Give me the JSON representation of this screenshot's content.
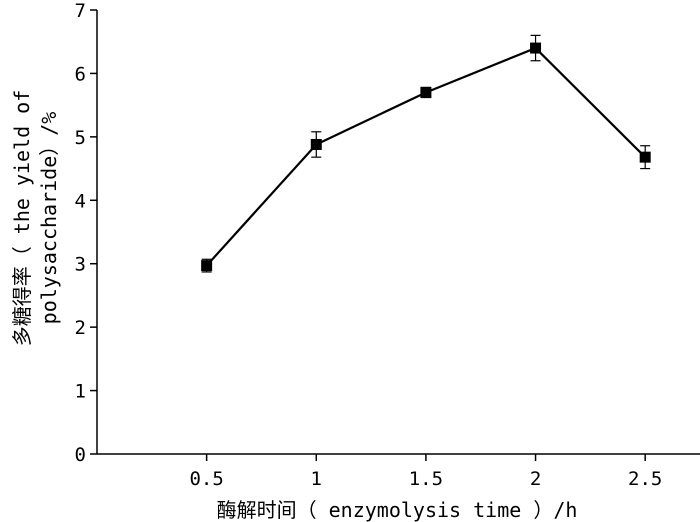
{
  "chart_data": {
    "type": "line",
    "title": "",
    "xlabel": "酶解时间（ enzymolysis time ）/h",
    "ylabel_lines": [
      "多糖得率（ the yield of",
      "polysaccharide）/%"
    ],
    "x_ticks": [
      "0.5",
      "1",
      "1.5",
      "2",
      "2.5"
    ],
    "y_ticks": [
      "0",
      "1",
      "2",
      "3",
      "4",
      "5",
      "6",
      "7"
    ],
    "xlim": [
      0,
      2.75
    ],
    "ylim": [
      0,
      7
    ],
    "grid": false,
    "series": [
      {
        "x": [
          0.5,
          1.0,
          1.5,
          2.0,
          2.5
        ],
        "y": [
          2.97,
          4.88,
          5.7,
          6.4,
          4.68
        ],
        "error": [
          0.1,
          0.2,
          0.08,
          0.2,
          0.18
        ],
        "marker": "square",
        "color": "#000000"
      }
    ]
  }
}
